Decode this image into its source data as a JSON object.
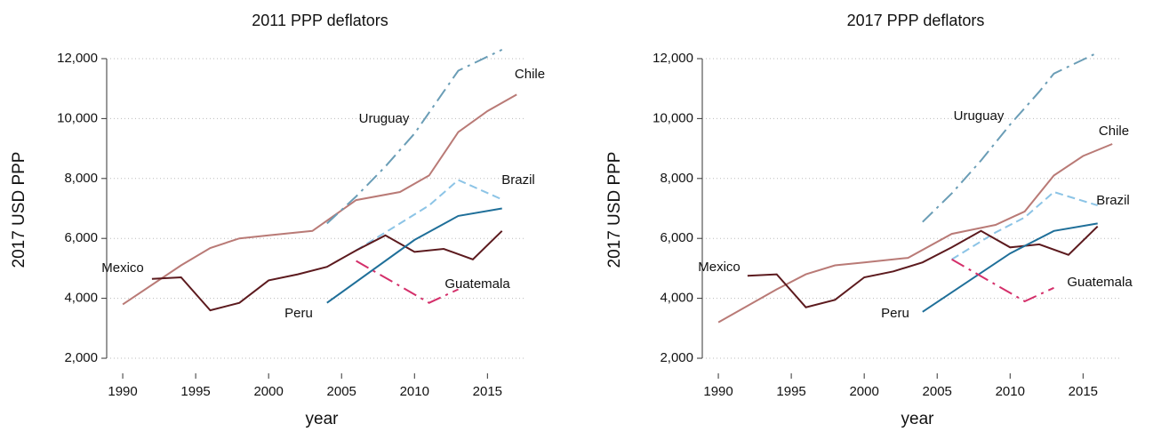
{
  "chart_data": [
    {
      "type": "line",
      "title": "2011 PPP deflators",
      "x_label": "year",
      "y_label": "2017 USD PPP",
      "xlim": [
        1988.9,
        2017.6
      ],
      "xticks": [
        1990,
        1995,
        2000,
        2005,
        2010,
        2015
      ],
      "ylim": [
        1600,
        12400
      ],
      "yticks": [
        {
          "value": 2000,
          "label": "2,000"
        },
        {
          "value": 4000,
          "label": "4,000"
        },
        {
          "value": 6000,
          "label": "6,000"
        },
        {
          "value": 8000,
          "label": "8,000"
        },
        {
          "value": 10000,
          "label": "10,000"
        },
        {
          "value": 12000,
          "label": "12,000"
        }
      ],
      "grid": true,
      "series": [
        {
          "name": "Chile",
          "color": "#b97a76",
          "style": "solid",
          "x": [
            1990,
            1994,
            1996,
            1998,
            2000,
            2003,
            2006,
            2009,
            2011,
            2013,
            2015,
            2017
          ],
          "values": [
            3800,
            5100,
            5680,
            6000,
            6100,
            6250,
            7280,
            7550,
            8100,
            9550,
            10250,
            10800
          ]
        },
        {
          "name": "Uruguay",
          "color": "#6a9db6",
          "style": "dashdot",
          "x": [
            2004,
            2006,
            2008,
            2010,
            2012,
            2013,
            2016
          ],
          "values": [
            6500,
            7400,
            8400,
            9500,
            10900,
            11600,
            12300
          ]
        },
        {
          "name": "Brazil",
          "color": "#8cc4e6",
          "style": "dash",
          "x": [
            2006,
            2009,
            2011,
            2013,
            2016
          ],
          "values": [
            5600,
            6500,
            7100,
            7950,
            7300
          ]
        },
        {
          "name": "Mexico",
          "color": "#5c1a1e",
          "style": "solid",
          "x": [
            1992,
            1994,
            1996,
            1998,
            2000,
            2002,
            2004,
            2006,
            2008,
            2010,
            2012,
            2014,
            2016
          ],
          "values": [
            4650,
            4700,
            3600,
            3850,
            4600,
            4800,
            5050,
            5600,
            6100,
            5550,
            5650,
            5300,
            6250
          ]
        },
        {
          "name": "Peru",
          "color": "#1f6f99",
          "style": "solid",
          "x": [
            2004,
            2010,
            2013,
            2016
          ],
          "values": [
            3850,
            5950,
            6750,
            7000
          ]
        },
        {
          "name": "Guatemala",
          "color": "#d42f6a",
          "style": "dashdot",
          "x": [
            2006,
            2011,
            2013
          ],
          "values": [
            5250,
            3850,
            4300
          ]
        }
      ]
    },
    {
      "type": "line",
      "title": "2017 PPP deflators",
      "x_label": "year",
      "y_label": "2017 USD PPP",
      "xlim": [
        1988.9,
        2017.6
      ],
      "xticks": [
        1990,
        1995,
        2000,
        2005,
        2010,
        2015
      ],
      "ylim": [
        1600,
        12400
      ],
      "yticks": [
        {
          "value": 2000,
          "label": "2,000"
        },
        {
          "value": 4000,
          "label": "4,000"
        },
        {
          "value": 6000,
          "label": "6,000"
        },
        {
          "value": 8000,
          "label": "8,000"
        },
        {
          "value": 10000,
          "label": "10,000"
        },
        {
          "value": 12000,
          "label": "12,000"
        }
      ],
      "grid": true,
      "series": [
        {
          "name": "Chile",
          "color": "#b97a76",
          "style": "solid",
          "x": [
            1990,
            1994,
            1996,
            1998,
            2000,
            2003,
            2006,
            2009,
            2011,
            2013,
            2015,
            2017
          ],
          "values": [
            3200,
            4300,
            4800,
            5100,
            5200,
            5350,
            6150,
            6450,
            6900,
            8100,
            8750,
            9150
          ]
        },
        {
          "name": "Uruguay",
          "color": "#6a9db6",
          "style": "dashdot",
          "x": [
            2004,
            2006,
            2008,
            2010,
            2012,
            2013,
            2016
          ],
          "values": [
            6550,
            7500,
            8600,
            9800,
            10900,
            11500,
            12200
          ]
        },
        {
          "name": "Brazil",
          "color": "#8cc4e6",
          "style": "dash",
          "x": [
            2006,
            2009,
            2011,
            2013,
            2016
          ],
          "values": [
            5300,
            6200,
            6700,
            7550,
            7100
          ]
        },
        {
          "name": "Mexico",
          "color": "#5c1a1e",
          "style": "solid",
          "x": [
            1992,
            1994,
            1996,
            1998,
            2000,
            2002,
            2004,
            2006,
            2008,
            2010,
            2012,
            2014,
            2016
          ],
          "values": [
            4750,
            4800,
            3700,
            3950,
            4700,
            4900,
            5200,
            5700,
            6250,
            5700,
            5800,
            5450,
            6400
          ]
        },
        {
          "name": "Peru",
          "color": "#1f6f99",
          "style": "solid",
          "x": [
            2004,
            2010,
            2013,
            2016
          ],
          "values": [
            3550,
            5500,
            6250,
            6500
          ]
        },
        {
          "name": "Guatemala",
          "color": "#d42f6a",
          "style": "dashdot",
          "x": [
            2006,
            2011,
            2013
          ],
          "values": [
            5300,
            3900,
            4350
          ]
        }
      ]
    }
  ]
}
